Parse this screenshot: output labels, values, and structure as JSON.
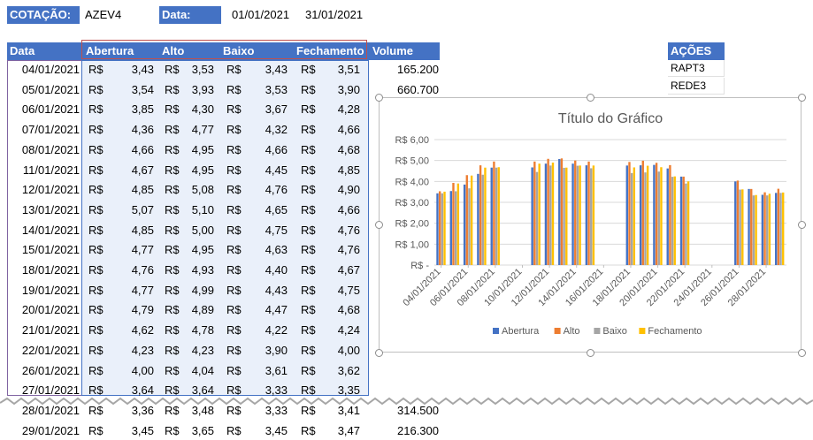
{
  "top": {
    "cotacao_label": "COTAÇÃO:",
    "ticker": "AZEV4",
    "data_label": "Data:",
    "date_start": "01/01/2021",
    "date_end": "31/01/2021"
  },
  "table": {
    "headers": [
      "Data",
      "Abertura",
      "Alto",
      "Baixo",
      "Fechamento",
      "Volume"
    ],
    "currency": "R$",
    "rows": [
      {
        "date": "04/01/2021",
        "open": "3,43",
        "high": "3,53",
        "low": "3,43",
        "close": "3,51",
        "volume": "165.200"
      },
      {
        "date": "05/01/2021",
        "open": "3,54",
        "high": "3,93",
        "low": "3,53",
        "close": "3,90",
        "volume": "660.700"
      },
      {
        "date": "06/01/2021",
        "open": "3,85",
        "high": "4,30",
        "low": "3,67",
        "close": "4,28",
        "volume": ""
      },
      {
        "date": "07/01/2021",
        "open": "4,36",
        "high": "4,77",
        "low": "4,32",
        "close": "4,66",
        "volume": ""
      },
      {
        "date": "08/01/2021",
        "open": "4,66",
        "high": "4,95",
        "low": "4,66",
        "close": "4,68",
        "volume": ""
      },
      {
        "date": "11/01/2021",
        "open": "4,67",
        "high": "4,95",
        "low": "4,45",
        "close": "4,85",
        "volume": ""
      },
      {
        "date": "12/01/2021",
        "open": "4,85",
        "high": "5,08",
        "low": "4,76",
        "close": "4,90",
        "volume": ""
      },
      {
        "date": "13/01/2021",
        "open": "5,07",
        "high": "5,10",
        "low": "4,65",
        "close": "4,66",
        "volume": ""
      },
      {
        "date": "14/01/2021",
        "open": "4,85",
        "high": "5,00",
        "low": "4,75",
        "close": "4,76",
        "volume": ""
      },
      {
        "date": "15/01/2021",
        "open": "4,77",
        "high": "4,95",
        "low": "4,63",
        "close": "4,76",
        "volume": ""
      },
      {
        "date": "18/01/2021",
        "open": "4,76",
        "high": "4,93",
        "low": "4,40",
        "close": "4,67",
        "volume": ""
      },
      {
        "date": "19/01/2021",
        "open": "4,77",
        "high": "4,99",
        "low": "4,43",
        "close": "4,75",
        "volume": ""
      },
      {
        "date": "20/01/2021",
        "open": "4,79",
        "high": "4,89",
        "low": "4,47",
        "close": "4,68",
        "volume": ""
      },
      {
        "date": "21/01/2021",
        "open": "4,62",
        "high": "4,78",
        "low": "4,22",
        "close": "4,24",
        "volume": ""
      },
      {
        "date": "22/01/2021",
        "open": "4,23",
        "high": "4,23",
        "low": "3,90",
        "close": "4,00",
        "volume": ""
      },
      {
        "date": "26/01/2021",
        "open": "4,00",
        "high": "4,04",
        "low": "3,61",
        "close": "3,62",
        "volume": ""
      },
      {
        "date": "27/01/2021",
        "open": "3,64",
        "high": "3,64",
        "low": "3,33",
        "close": "3,35",
        "volume": ""
      },
      {
        "date": "28/01/2021",
        "open": "3,36",
        "high": "3,48",
        "low": "3,33",
        "close": "3,41",
        "volume": "314.500"
      },
      {
        "date": "29/01/2021",
        "open": "3,45",
        "high": "3,65",
        "low": "3,45",
        "close": "3,47",
        "volume": "216.300"
      }
    ]
  },
  "acoes": {
    "header": "AÇÕES",
    "items": [
      "RAPT3",
      "REDE3"
    ]
  },
  "chart_data": {
    "type": "bar",
    "title": "Título do Gráfico",
    "x": [
      "04/01/2021",
      "05/01/2021",
      "06/01/2021",
      "07/01/2021",
      "08/01/2021",
      "11/01/2021",
      "12/01/2021",
      "13/01/2021",
      "14/01/2021",
      "15/01/2021",
      "18/01/2021",
      "19/01/2021",
      "20/01/2021",
      "21/01/2021",
      "22/01/2021",
      "26/01/2021",
      "27/01/2021",
      "28/01/2021",
      "29/01/2021"
    ],
    "x_tick_labels": [
      "04/01/2021",
      "06/01/2021",
      "08/01/2021",
      "10/01/2021",
      "12/01/2021",
      "14/01/2021",
      "16/01/2021",
      "18/01/2021",
      "20/01/2021",
      "22/01/2021",
      "24/01/2021",
      "26/01/2021",
      "28/01/2021"
    ],
    "x_axis_type": "date",
    "x_range": [
      "04/01/2021",
      "29/01/2021"
    ],
    "y_tick_labels": [
      "R$ -",
      "R$ 1,00",
      "R$ 2,00",
      "R$ 3,00",
      "R$ 4,00",
      "R$ 5,00",
      "R$ 6,00"
    ],
    "ylim": [
      0,
      6
    ],
    "grid": true,
    "legend_position": "bottom",
    "series": [
      {
        "name": "Abertura",
        "color": "#4472c4",
        "values": [
          3.43,
          3.54,
          3.85,
          4.36,
          4.66,
          4.67,
          4.85,
          5.07,
          4.85,
          4.77,
          4.76,
          4.77,
          4.79,
          4.62,
          4.23,
          4.0,
          3.64,
          3.36,
          3.45
        ]
      },
      {
        "name": "Alto",
        "color": "#ed7d31",
        "values": [
          3.53,
          3.93,
          4.3,
          4.77,
          4.95,
          4.95,
          5.08,
          5.1,
          5.0,
          4.95,
          4.93,
          4.99,
          4.89,
          4.78,
          4.23,
          4.04,
          3.64,
          3.48,
          3.65
        ]
      },
      {
        "name": "Baixo",
        "color": "#a5a5a5",
        "values": [
          3.43,
          3.53,
          3.67,
          4.32,
          4.66,
          4.45,
          4.76,
          4.65,
          4.75,
          4.63,
          4.4,
          4.43,
          4.47,
          4.22,
          3.9,
          3.61,
          3.33,
          3.33,
          3.45
        ]
      },
      {
        "name": "Fechamento",
        "color": "#ffc000",
        "values": [
          3.51,
          3.9,
          4.28,
          4.66,
          4.68,
          4.85,
          4.9,
          4.66,
          4.76,
          4.76,
          4.67,
          4.75,
          4.68,
          4.24,
          4.0,
          3.62,
          3.35,
          3.41,
          3.47
        ]
      }
    ]
  }
}
